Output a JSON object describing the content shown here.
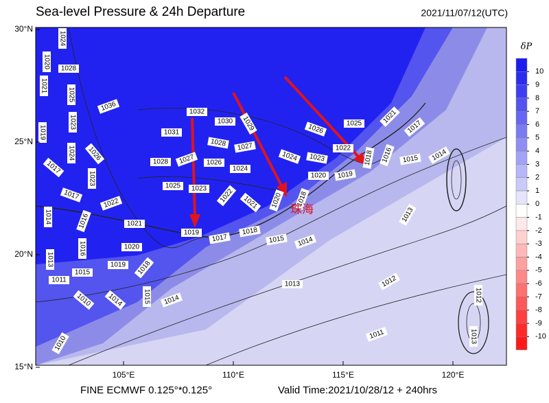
{
  "header": {
    "title": "Sea-level Pressure & 24h Departure",
    "time": "2021/11/07/12(UTC)"
  },
  "map": {
    "lat_ticks": [
      {
        "value": 30,
        "label": "30°N"
      },
      {
        "value": 25,
        "label": "25°N"
      },
      {
        "value": 20,
        "label": "20°N"
      },
      {
        "value": 15,
        "label": "15°N"
      }
    ],
    "lon_ticks": [
      {
        "value": 105,
        "label": "105°E"
      },
      {
        "value": 110,
        "label": "110°E"
      },
      {
        "value": 115,
        "label": "115°E"
      },
      {
        "value": 120,
        "label": "120°E"
      }
    ],
    "contour_labels": [
      "1024",
      "1020",
      "1028",
      "1021",
      "1025",
      "1036",
      "1023",
      "1019",
      "1032",
      "1030",
      "1031",
      "1029",
      "1026",
      "1025",
      "1021",
      "1017",
      "1024",
      "1026",
      "1028",
      "1027",
      "1024",
      "1023",
      "1022",
      "1018",
      "1016",
      "1015",
      "1014",
      "1028",
      "1027",
      "1026",
      "1024",
      "1017",
      "1023",
      "1020",
      "1019",
      "1025",
      "1023",
      "1022",
      "1017",
      "1022",
      "1021",
      "1020",
      "1018",
      "1014",
      "1016",
      "1021",
      "1013",
      "1019",
      "1018",
      "1017",
      "1015",
      "1014",
      "1020",
      "1016",
      "1013",
      "1019",
      "1018",
      "1015",
      "1011",
      "1013",
      "1012",
      "1010",
      "1014",
      "1015",
      "1014",
      "1012",
      "1011",
      "1013",
      "1010"
    ],
    "place_label": "珠海"
  },
  "colorbar": {
    "title": "δP",
    "ticks": [
      10,
      9,
      8,
      7,
      6,
      5,
      4,
      3,
      2,
      1,
      0,
      -1,
      -2,
      -3,
      -4,
      -5,
      -6,
      -7,
      -8,
      -9,
      -10
    ],
    "colors": [
      "#1c1cee",
      "#2c2cef",
      "#3e3ef0",
      "#5252f1",
      "#6666f2",
      "#7a7af3",
      "#8e8ef4",
      "#a2a2f6",
      "#b6b6f8",
      "#cacafa",
      "#e4e4fc",
      "#ffffff",
      "#ffe8e8",
      "#ffd0d0",
      "#ffb8b8",
      "#ffa0a0",
      "#ff8888",
      "#ff7070",
      "#ff5858",
      "#ff4040",
      "#ff2a2a",
      "#ff1a1a"
    ]
  },
  "footer": {
    "model": "FINE ECMWF 0.125°*0.125°",
    "valid": "Valid Time:2021/10/28/12 + 240hrs"
  }
}
